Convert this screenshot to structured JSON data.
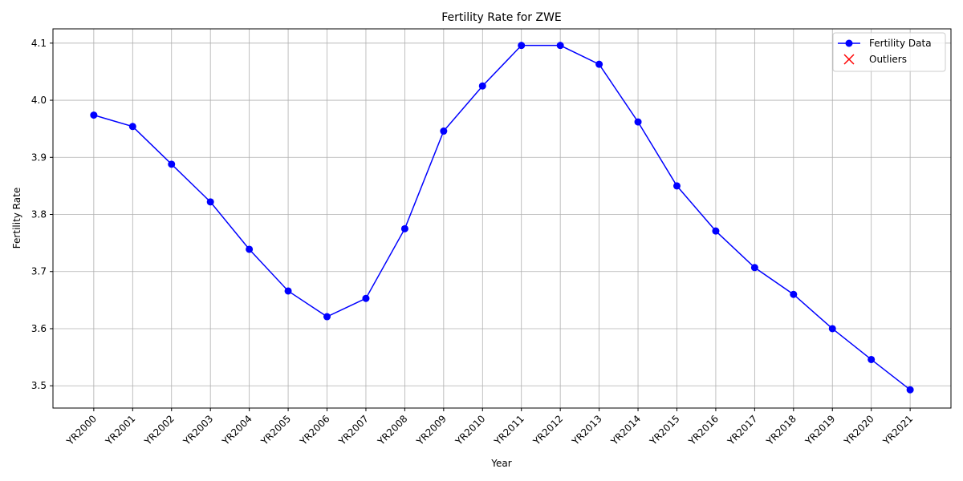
{
  "chart_data": {
    "type": "line",
    "title": "Fertility Rate for ZWE",
    "xlabel": "Year",
    "ylabel": "Fertility Rate",
    "categories": [
      "YR2000",
      "YR2001",
      "YR2002",
      "YR2003",
      "YR2004",
      "YR2005",
      "YR2006",
      "YR2007",
      "YR2008",
      "YR2009",
      "YR2010",
      "YR2011",
      "YR2012",
      "YR2013",
      "YR2014",
      "YR2015",
      "YR2016",
      "YR2017",
      "YR2018",
      "YR2019",
      "YR2020",
      "YR2021"
    ],
    "series": [
      {
        "name": "Fertility Data",
        "color": "#0000ff",
        "marker": "o",
        "values": [
          3.974,
          3.954,
          3.888,
          3.822,
          3.739,
          3.666,
          3.621,
          3.653,
          3.775,
          3.946,
          4.025,
          4.096,
          4.096,
          4.063,
          3.962,
          3.85,
          3.771,
          3.707,
          3.66,
          3.6,
          3.546,
          3.493
        ]
      },
      {
        "name": "Outliers",
        "color": "#ff0000",
        "marker": "x",
        "values": [
          null,
          null,
          null,
          null,
          null,
          null,
          null,
          null,
          null,
          null,
          null,
          null,
          null,
          null,
          null,
          null,
          null,
          null,
          null,
          null,
          null,
          null
        ]
      }
    ],
    "ylim": [
      3.461,
      4.125
    ],
    "yticks": [
      {
        "value": 3.5,
        "label": "3.5"
      },
      {
        "value": 3.6,
        "label": "3.6"
      },
      {
        "value": 3.7,
        "label": "3.7"
      },
      {
        "value": 3.8,
        "label": "3.8"
      },
      {
        "value": 3.9,
        "label": "3.9"
      },
      {
        "value": 4.0,
        "label": "4.0"
      },
      {
        "value": 4.1,
        "label": "4.1"
      }
    ],
    "grid": true,
    "legend": "upper right"
  }
}
